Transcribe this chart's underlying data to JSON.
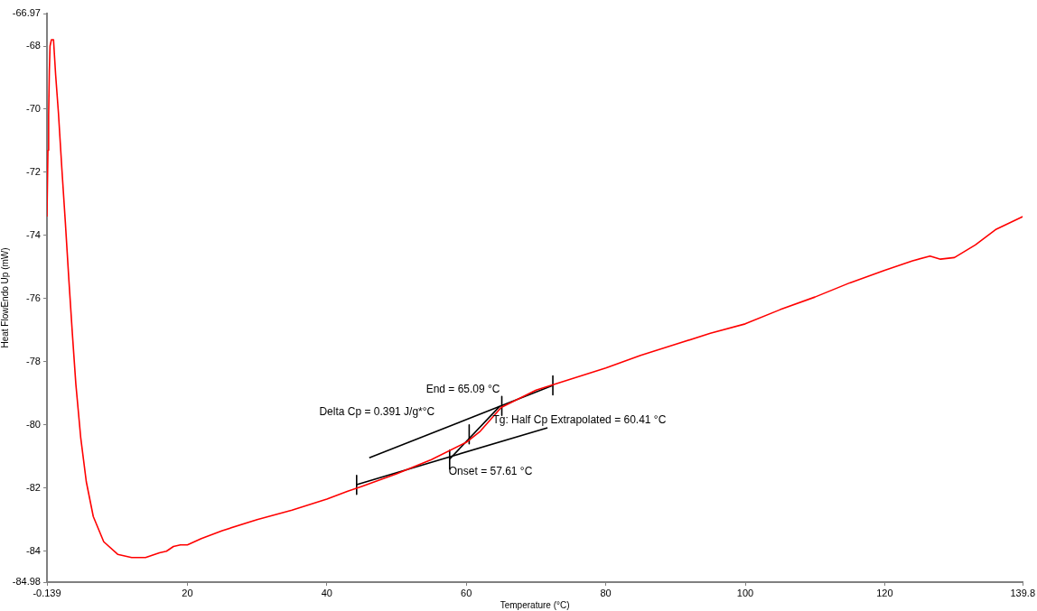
{
  "chart_data": {
    "type": "line",
    "xlabel": "Temperature (°C)",
    "ylabel": "Heat FlowEndo Up (mW)",
    "xlim": [
      -0.139,
      139.8
    ],
    "xticks": [
      -0.139,
      20,
      40,
      60,
      80,
      100,
      120,
      139.8
    ],
    "ylim": [
      -84.98,
      -66.97
    ],
    "yticks": [
      -84.98,
      -84,
      -82,
      -80,
      -78,
      -76,
      -74,
      -72,
      -70,
      -68,
      -66.97
    ],
    "legend": false,
    "marker": "none",
    "line_style": "solid",
    "series": [
      {
        "color": "#ff0000",
        "x": [
          -0.139,
          0.0,
          0.1,
          0.2,
          0.3,
          0.5,
          0.8,
          1.1,
          1.5,
          2.0,
          2.5,
          3.0,
          3.5,
          4.0,
          4.7,
          5.5,
          6.5,
          8.0,
          10.0,
          12.0,
          14.0,
          16.0,
          17.0,
          18.0,
          19.0,
          20.0,
          22.0,
          25.0,
          30.0,
          35.0,
          40.0,
          43.0,
          45.0,
          50.0,
          55.0,
          60.0,
          62.0,
          65.0,
          70.0,
          75.0,
          80.0,
          85.0,
          90.0,
          95.0,
          100.0,
          105.0,
          110.0,
          115.0,
          120.0,
          124.0,
          126.5,
          128.0,
          130.0,
          133.0,
          136.0,
          139.8
        ],
        "values": [
          -73.4,
          -71.3,
          -70.2,
          -68.8,
          -68.0,
          -67.8,
          -67.8,
          -68.9,
          -70.1,
          -71.9,
          -73.6,
          -75.4,
          -77.1,
          -78.7,
          -80.4,
          -81.8,
          -82.9,
          -83.7,
          -84.1,
          -84.2,
          -84.2,
          -84.05,
          -84.0,
          -83.85,
          -83.8,
          -83.8,
          -83.6,
          -83.35,
          -83.0,
          -82.7,
          -82.35,
          -82.1,
          -81.95,
          -81.55,
          -81.1,
          -80.55,
          -80.2,
          -79.45,
          -78.9,
          -78.55,
          -78.2,
          -77.8,
          -77.45,
          -77.1,
          -76.8,
          -76.35,
          -75.95,
          -75.5,
          -75.1,
          -74.8,
          -74.65,
          -74.75,
          -74.7,
          -74.3,
          -73.8,
          -73.4
        ]
      },
      {
        "color": "#000000",
        "x": [
          44.27,
          71.64
        ],
        "values": [
          -81.89,
          -80.09
        ]
      },
      {
        "color": "#000000",
        "x": [
          46.08,
          72.41
        ],
        "values": [
          -81.04,
          -78.75
        ]
      },
      {
        "color": "#000000",
        "x": [
          57.57,
          64.8
        ],
        "values": [
          -81.09,
          -79.41
        ]
      },
      {
        "color": "#000000",
        "x": [
          44.27,
          44.27
        ],
        "values": [
          -81.6,
          -82.2
        ]
      },
      {
        "color": "#000000",
        "x": [
          57.61,
          57.61
        ],
        "values": [
          -80.8,
          -81.4
        ]
      },
      {
        "color": "#000000",
        "x": [
          60.41,
          60.41
        ],
        "values": [
          -80.0,
          -80.6
        ]
      },
      {
        "color": "#000000",
        "x": [
          65.09,
          65.09
        ],
        "values": [
          -79.1,
          -79.7
        ]
      },
      {
        "color": "#000000",
        "x": [
          72.41,
          72.41
        ],
        "values": [
          -78.45,
          -79.05
        ]
      }
    ],
    "annotations": [
      {
        "text": "End = 65.09 °C",
        "x": 65.09,
        "y": -79.41
      },
      "Delta Cp = 0.391 J/g*°C",
      {
        "text": "Tg: Half Cp Extrapolated = 60.41 °C",
        "x": 60.41,
        "y": -80.3
      },
      {
        "text": "Onset = 57.61 °C",
        "x": 57.61,
        "y": -81.09
      }
    ]
  }
}
